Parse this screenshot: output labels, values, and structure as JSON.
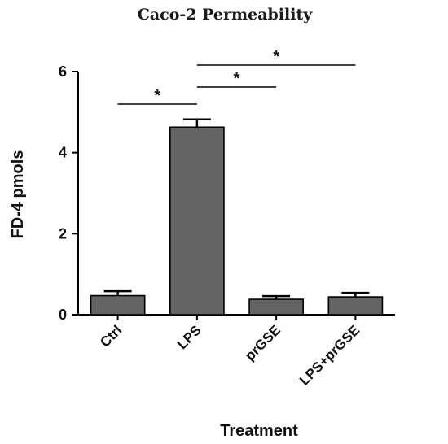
{
  "chart_data": {
    "type": "bar",
    "title": "Caco-2 Permeability",
    "xlabel": "Treatment",
    "ylabel": "FD-4 pmols",
    "categories": [
      "Ctrl",
      "LPS",
      "prGSE",
      "LPS+prGSE"
    ],
    "values": [
      0.47,
      4.63,
      0.38,
      0.44
    ],
    "errors": [
      0.11,
      0.19,
      0.08,
      0.1
    ],
    "ylim": [
      0,
      6
    ],
    "yticks": [
      0,
      2,
      4,
      6
    ],
    "bar_color": "#636363",
    "significance": [
      {
        "from": "Ctrl",
        "to": "LPS",
        "label": "*"
      },
      {
        "from": "LPS",
        "to": "prGSE",
        "label": "*"
      },
      {
        "from": "LPS",
        "to": "LPS+prGSE",
        "label": "*"
      }
    ],
    "grid": false,
    "legend": "none"
  }
}
